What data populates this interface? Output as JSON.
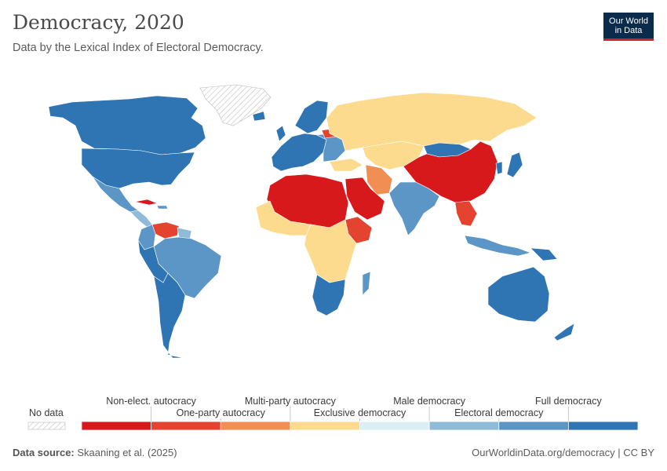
{
  "header": {
    "title": "Democracy, 2020",
    "subtitle": "Data by the Lexical Index of Electoral Democracy."
  },
  "logo": {
    "line1": "Our World",
    "line2": "in Data"
  },
  "legend": {
    "no_data_label": "No data",
    "categories": [
      {
        "label": "Non-elect. autocracy",
        "color": "#d7191c",
        "row": "top"
      },
      {
        "label": "One-party autocracy",
        "color": "#e4432f",
        "row": "bottom"
      },
      {
        "label": "Multi-party autocracy",
        "color": "#f08e53",
        "row": "top"
      },
      {
        "label": "Exclusive democracy",
        "color": "#fcdb8f",
        "row": "bottom"
      },
      {
        "label": "Male democracy",
        "color": "#daeef3",
        "row": "top"
      },
      {
        "label": "Electoral democracy",
        "color": "#8ebcd8",
        "row": "bottom"
      },
      {
        "label": "Full democracy",
        "color": "#5b96c6",
        "row": "top"
      },
      {
        "label": "",
        "color": "#2f74b3",
        "row": "none"
      }
    ]
  },
  "colors": {
    "non_electoral_autocracy": "#d7191c",
    "one_party_autocracy": "#e4432f",
    "multi_party_autocracy": "#f08e53",
    "exclusive_democracy": "#fcdb8f",
    "male_democracy": "#daeef3",
    "electoral_democracy": "#8ebcd8",
    "full_democracy": "#5b96c6",
    "full_democracy_dark": "#2f74b3"
  },
  "footer": {
    "source_label": "Data source:",
    "source_text": "Skaaning et al. (2025)",
    "link_text": "OurWorldinData.org/democracy | CC BY"
  }
}
